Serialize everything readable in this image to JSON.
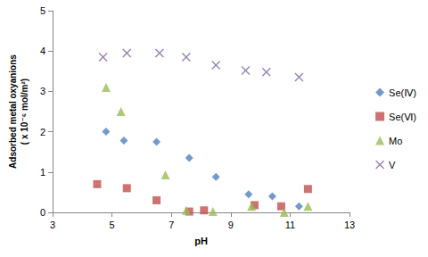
{
  "chart_data": {
    "type": "scatter",
    "x_label": "pH",
    "y_label": "Adsorbed metal oxyanions\n( x 10⁻⁶ mol/m²)",
    "xlim": [
      3,
      13
    ],
    "xticks": [
      3,
      5,
      7,
      9,
      11,
      13
    ],
    "ylim": [
      0,
      5
    ],
    "yticks": [
      0,
      1,
      2,
      3,
      4,
      5
    ],
    "grid": false,
    "legend": "right",
    "series": [
      {
        "name": "Se(Ⅳ)",
        "color": "#4f81bd",
        "marker": "diamond",
        "x": [
          4.8,
          5.4,
          6.5,
          7.6,
          8.5,
          9.6,
          10.4,
          11.3
        ],
        "values": [
          2.0,
          1.78,
          1.75,
          1.35,
          0.88,
          0.45,
          0.4,
          0.15
        ]
      },
      {
        "name": "Se(Ⅵ)",
        "color": "#c0504d",
        "marker": "square",
        "x": [
          4.5,
          5.5,
          6.5,
          7.6,
          8.1,
          9.8,
          10.7,
          11.6
        ],
        "values": [
          0.7,
          0.6,
          0.3,
          0.02,
          0.05,
          0.18,
          0.15,
          0.58
        ]
      },
      {
        "name": "Mo",
        "color": "#9bbb59",
        "marker": "triangle",
        "x": [
          4.8,
          5.3,
          6.8,
          7.5,
          8.4,
          9.7,
          10.8,
          11.6
        ],
        "values": [
          3.1,
          2.5,
          0.93,
          0.05,
          0.02,
          0.15,
          0.0,
          0.15
        ]
      },
      {
        "name": "V",
        "color": "#8064a2",
        "marker": "x",
        "x": [
          4.7,
          5.5,
          6.6,
          7.5,
          8.5,
          9.5,
          10.2,
          11.3
        ],
        "values": [
          3.85,
          3.95,
          3.95,
          3.85,
          3.65,
          3.52,
          3.48,
          3.35
        ]
      }
    ]
  }
}
